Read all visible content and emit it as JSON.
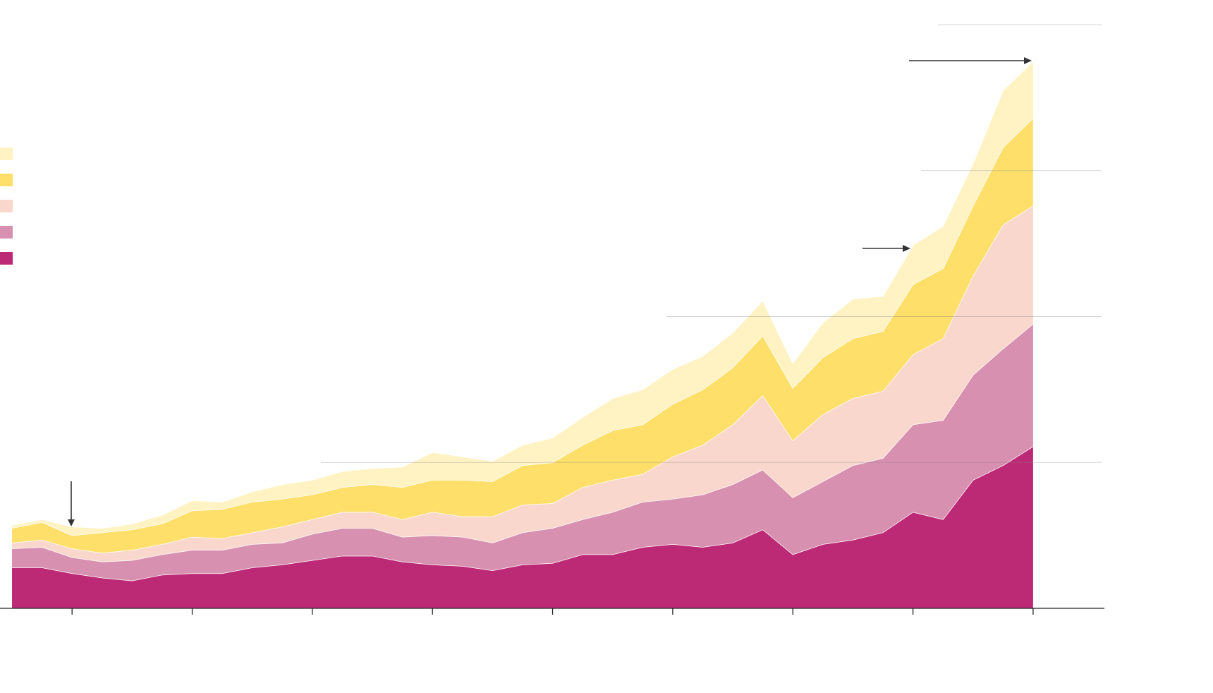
{
  "chart_data": {
    "type": "stacked-area",
    "x": [
      0.5,
      0.75,
      1.0,
      1.25,
      1.5,
      1.75,
      2.0,
      2.25,
      2.5,
      2.75,
      3.0,
      3.25,
      3.5,
      3.75,
      4.0,
      4.25,
      4.5,
      4.75,
      5.0,
      5.25,
      5.5,
      5.75,
      6.0,
      6.25,
      6.5,
      6.75,
      7.0,
      7.25,
      7.5,
      7.75,
      8.0,
      8.25,
      8.5,
      8.75,
      9.0
    ],
    "series": [
      {
        "color": "#bc2a76",
        "values": [
          0.28,
          0.28,
          0.24,
          0.21,
          0.19,
          0.23,
          0.24,
          0.24,
          0.28,
          0.3,
          0.33,
          0.36,
          0.36,
          0.32,
          0.3,
          0.29,
          0.26,
          0.3,
          0.31,
          0.37,
          0.37,
          0.42,
          0.44,
          0.42,
          0.45,
          0.54,
          0.37,
          0.44,
          0.47,
          0.52,
          0.66,
          0.61,
          0.88,
          0.98,
          1.11
        ]
      },
      {
        "color": "#d890b0",
        "values": [
          0.13,
          0.14,
          0.11,
          0.11,
          0.14,
          0.14,
          0.16,
          0.16,
          0.16,
          0.15,
          0.18,
          0.19,
          0.19,
          0.17,
          0.2,
          0.2,
          0.19,
          0.22,
          0.24,
          0.24,
          0.29,
          0.31,
          0.31,
          0.36,
          0.4,
          0.41,
          0.39,
          0.43,
          0.51,
          0.51,
          0.6,
          0.68,
          0.72,
          0.8,
          0.84
        ]
      },
      {
        "color": "#fad7cc",
        "values": [
          0.04,
          0.05,
          0.06,
          0.06,
          0.07,
          0.07,
          0.09,
          0.08,
          0.08,
          0.11,
          0.1,
          0.11,
          0.11,
          0.12,
          0.16,
          0.14,
          0.18,
          0.19,
          0.17,
          0.22,
          0.22,
          0.19,
          0.29,
          0.34,
          0.41,
          0.51,
          0.39,
          0.46,
          0.46,
          0.46,
          0.48,
          0.56,
          0.68,
          0.85,
          0.81
        ]
      },
      {
        "color": "#fddf6a",
        "values": [
          0.1,
          0.12,
          0.09,
          0.14,
          0.14,
          0.14,
          0.18,
          0.2,
          0.21,
          0.19,
          0.17,
          0.17,
          0.19,
          0.22,
          0.22,
          0.25,
          0.24,
          0.27,
          0.28,
          0.29,
          0.34,
          0.34,
          0.36,
          0.38,
          0.39,
          0.41,
          0.36,
          0.39,
          0.41,
          0.41,
          0.48,
          0.48,
          0.48,
          0.53,
          0.6
        ]
      },
      {
        "color": "#fff3c4",
        "values": [
          0.02,
          0.02,
          0.06,
          0.03,
          0.04,
          0.06,
          0.07,
          0.05,
          0.07,
          0.1,
          0.1,
          0.11,
          0.11,
          0.14,
          0.19,
          0.16,
          0.14,
          0.14,
          0.17,
          0.19,
          0.22,
          0.24,
          0.24,
          0.23,
          0.24,
          0.24,
          0.17,
          0.24,
          0.27,
          0.24,
          0.27,
          0.29,
          0.29,
          0.39,
          0.39
        ]
      }
    ],
    "xlim": [
      0.4,
      9.57
    ],
    "xticks": [
      1,
      2,
      3,
      4,
      5,
      6,
      7,
      8,
      9
    ],
    "ylim": [
      0,
      4
    ],
    "yticks": [
      1,
      2,
      3,
      4
    ],
    "grid": true
  }
}
